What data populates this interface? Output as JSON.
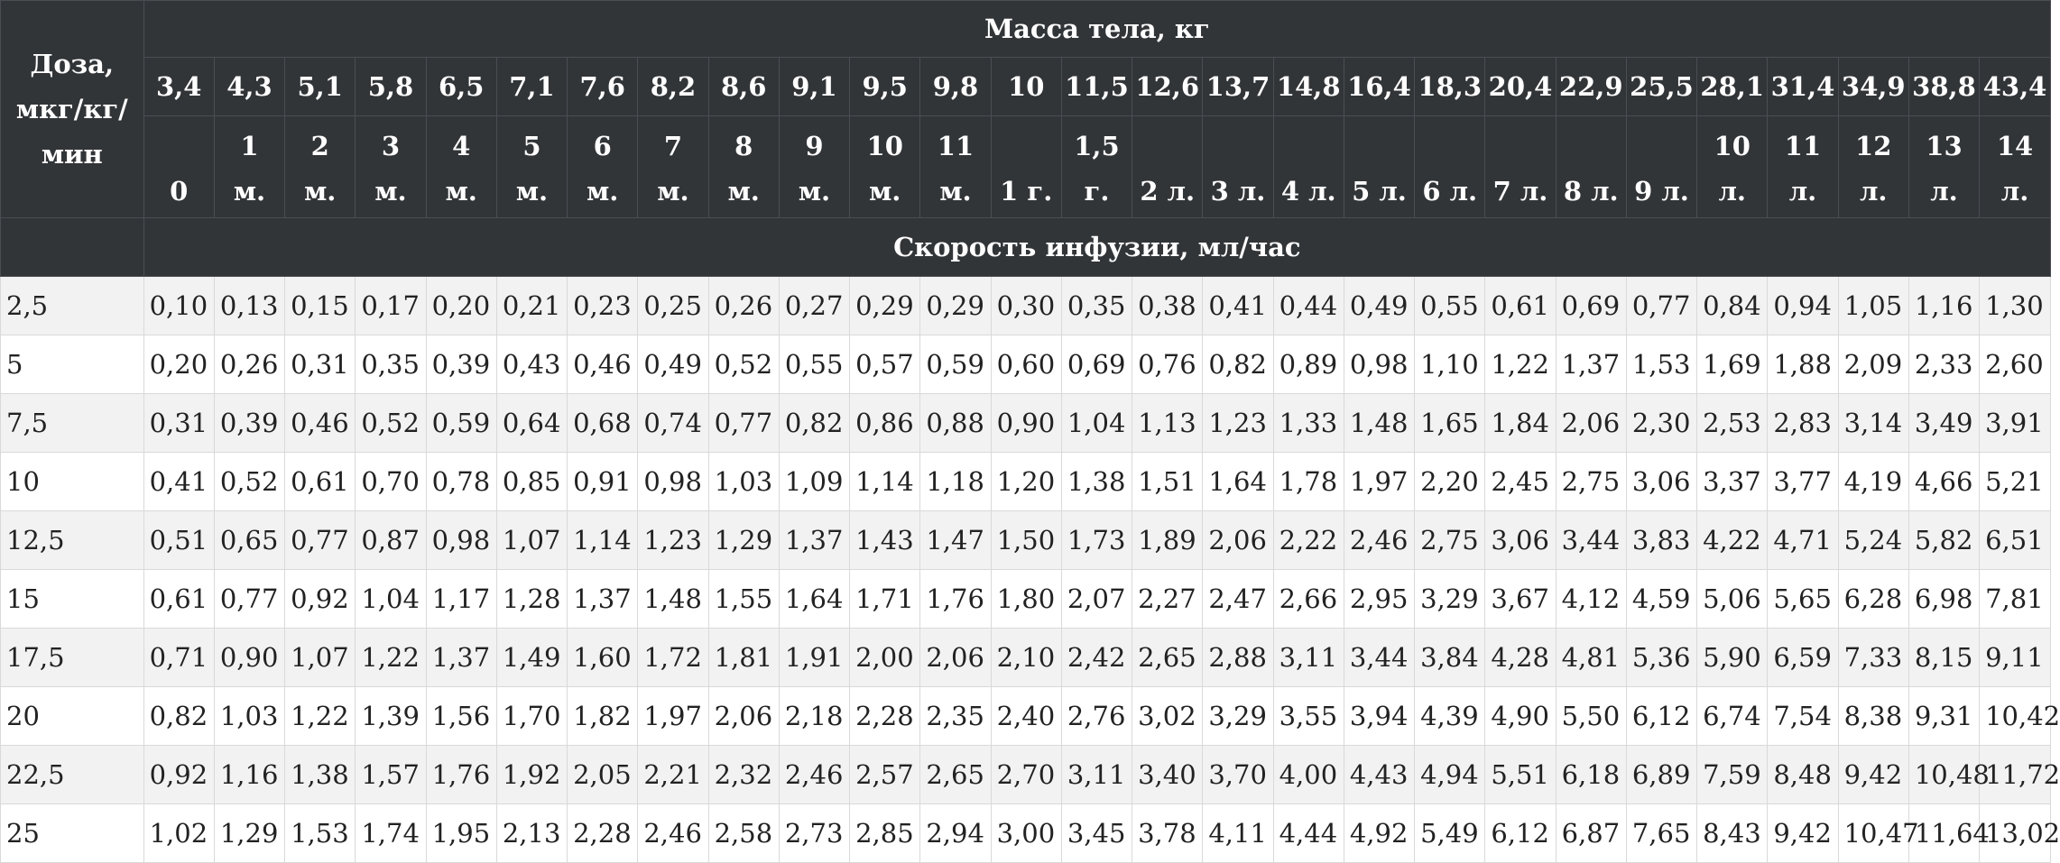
{
  "header": {
    "dose_label": "Доза, мкг/кг/мин",
    "mass_title": "Масса тела, кг",
    "speed_title": "Скорость инфузии, мл/час"
  },
  "masses": [
    "3,4",
    "4,3",
    "5,1",
    "5,8",
    "6,5",
    "7,1",
    "7,6",
    "8,2",
    "8,6",
    "9,1",
    "9,5",
    "9,8",
    "10",
    "11,5",
    "12,6",
    "13,7",
    "14,8",
    "16,4",
    "18,3",
    "20,4",
    "22,9",
    "25,5",
    "28,1",
    "31,4",
    "34,9",
    "38,8",
    "43,4"
  ],
  "ages": [
    [
      "",
      "0"
    ],
    [
      "1",
      "м."
    ],
    [
      "2",
      "м."
    ],
    [
      "3",
      "м."
    ],
    [
      "4",
      "м."
    ],
    [
      "5",
      "м."
    ],
    [
      "6",
      "м."
    ],
    [
      "7",
      "м."
    ],
    [
      "8",
      "м."
    ],
    [
      "9",
      "м."
    ],
    [
      "10",
      "м."
    ],
    [
      "11",
      "м."
    ],
    [
      "",
      "1 г."
    ],
    [
      "1,5",
      "г."
    ],
    [
      "",
      "2 л."
    ],
    [
      "",
      "3 л."
    ],
    [
      "",
      "4 л."
    ],
    [
      "",
      "5 л."
    ],
    [
      "",
      "6 л."
    ],
    [
      "",
      "7 л."
    ],
    [
      "",
      "8 л."
    ],
    [
      "",
      "9 л."
    ],
    [
      "10",
      "л."
    ],
    [
      "11",
      "л."
    ],
    [
      "",
      "12 л."
    ],
    [
      "",
      "13 л."
    ],
    [
      "",
      "14 л."
    ]
  ],
  "rows": [
    {
      "dose": "2,5",
      "values": [
        "0,10",
        "0,13",
        "0,15",
        "0,17",
        "0,20",
        "0,21",
        "0,23",
        "0,25",
        "0,26",
        "0,27",
        "0,29",
        "0,29",
        "0,30",
        "0,35",
        "0,38",
        "0,41",
        "0,44",
        "0,49",
        "0,55",
        "0,61",
        "0,69",
        "0,77",
        "0,84",
        "0,94",
        "1,05",
        "1,16",
        "1,30"
      ]
    },
    {
      "dose": "5",
      "values": [
        "0,20",
        "0,26",
        "0,31",
        "0,35",
        "0,39",
        "0,43",
        "0,46",
        "0,49",
        "0,52",
        "0,55",
        "0,57",
        "0,59",
        "0,60",
        "0,69",
        "0,76",
        "0,82",
        "0,89",
        "0,98",
        "1,10",
        "1,22",
        "1,37",
        "1,53",
        "1,69",
        "1,88",
        "2,09",
        "2,33",
        "2,60"
      ]
    },
    {
      "dose": "7,5",
      "values": [
        "0,31",
        "0,39",
        "0,46",
        "0,52",
        "0,59",
        "0,64",
        "0,68",
        "0,74",
        "0,77",
        "0,82",
        "0,86",
        "0,88",
        "0,90",
        "1,04",
        "1,13",
        "1,23",
        "1,33",
        "1,48",
        "1,65",
        "1,84",
        "2,06",
        "2,30",
        "2,53",
        "2,83",
        "3,14",
        "3,49",
        "3,91"
      ]
    },
    {
      "dose": "10",
      "values": [
        "0,41",
        "0,52",
        "0,61",
        "0,70",
        "0,78",
        "0,85",
        "0,91",
        "0,98",
        "1,03",
        "1,09",
        "1,14",
        "1,18",
        "1,20",
        "1,38",
        "1,51",
        "1,64",
        "1,78",
        "1,97",
        "2,20",
        "2,45",
        "2,75",
        "3,06",
        "3,37",
        "3,77",
        "4,19",
        "4,66",
        "5,21"
      ]
    },
    {
      "dose": "12,5",
      "values": [
        "0,51",
        "0,65",
        "0,77",
        "0,87",
        "0,98",
        "1,07",
        "1,14",
        "1,23",
        "1,29",
        "1,37",
        "1,43",
        "1,47",
        "1,50",
        "1,73",
        "1,89",
        "2,06",
        "2,22",
        "2,46",
        "2,75",
        "3,06",
        "3,44",
        "3,83",
        "4,22",
        "4,71",
        "5,24",
        "5,82",
        "6,51"
      ]
    },
    {
      "dose": "15",
      "values": [
        "0,61",
        "0,77",
        "0,92",
        "1,04",
        "1,17",
        "1,28",
        "1,37",
        "1,48",
        "1,55",
        "1,64",
        "1,71",
        "1,76",
        "1,80",
        "2,07",
        "2,27",
        "2,47",
        "2,66",
        "2,95",
        "3,29",
        "3,67",
        "4,12",
        "4,59",
        "5,06",
        "5,65",
        "6,28",
        "6,98",
        "7,81"
      ]
    },
    {
      "dose": "17,5",
      "values": [
        "0,71",
        "0,90",
        "1,07",
        "1,22",
        "1,37",
        "1,49",
        "1,60",
        "1,72",
        "1,81",
        "1,91",
        "2,00",
        "2,06",
        "2,10",
        "2,42",
        "2,65",
        "2,88",
        "3,11",
        "3,44",
        "3,84",
        "4,28",
        "4,81",
        "5,36",
        "5,90",
        "6,59",
        "7,33",
        "8,15",
        "9,11"
      ]
    },
    {
      "dose": "20",
      "values": [
        "0,82",
        "1,03",
        "1,22",
        "1,39",
        "1,56",
        "1,70",
        "1,82",
        "1,97",
        "2,06",
        "2,18",
        "2,28",
        "2,35",
        "2,40",
        "2,76",
        "3,02",
        "3,29",
        "3,55",
        "3,94",
        "4,39",
        "4,90",
        "5,50",
        "6,12",
        "6,74",
        "7,54",
        "8,38",
        "9,31",
        "10,42"
      ]
    },
    {
      "dose": "22,5",
      "values": [
        "0,92",
        "1,16",
        "1,38",
        "1,57",
        "1,76",
        "1,92",
        "2,05",
        "2,21",
        "2,32",
        "2,46",
        "2,57",
        "2,65",
        "2,70",
        "3,11",
        "3,40",
        "3,70",
        "4,00",
        "4,43",
        "4,94",
        "5,51",
        "6,18",
        "6,89",
        "7,59",
        "8,48",
        "9,42",
        "10,48",
        "11,72"
      ]
    },
    {
      "dose": "25",
      "values": [
        "1,02",
        "1,29",
        "1,53",
        "1,74",
        "1,95",
        "2,13",
        "2,28",
        "2,46",
        "2,58",
        "2,73",
        "2,85",
        "2,94",
        "3,00",
        "3,45",
        "3,78",
        "4,11",
        "4,44",
        "4,92",
        "5,49",
        "6,12",
        "6,87",
        "7,65",
        "8,43",
        "9,42",
        "10,47",
        "11,64",
        "13,02"
      ]
    }
  ]
}
